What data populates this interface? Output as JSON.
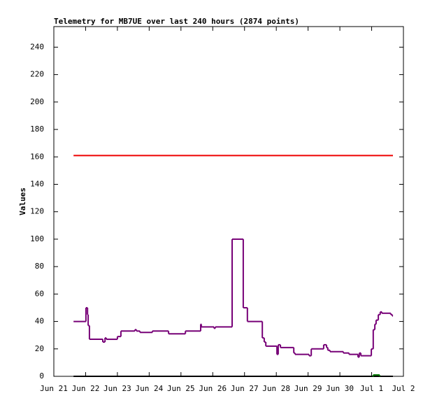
{
  "chart_data": {
    "type": "line",
    "step": true,
    "title": "Telemetry for MB7UE over last 240 hours (2874 points)",
    "ylabel": "Values",
    "xlim": [
      0,
      11
    ],
    "xticks": [
      {
        "value": 0,
        "label": "Jun 21"
      },
      {
        "value": 1,
        "label": "Jun 22"
      },
      {
        "value": 2,
        "label": "Jun 23"
      },
      {
        "value": 3,
        "label": "Jun 24"
      },
      {
        "value": 4,
        "label": "Jun 25"
      },
      {
        "value": 5,
        "label": "Jun 26"
      },
      {
        "value": 6,
        "label": "Jun 27"
      },
      {
        "value": 7,
        "label": "Jun 28"
      },
      {
        "value": 8,
        "label": "Jun 29"
      },
      {
        "value": 9,
        "label": "Jun 30"
      },
      {
        "value": 10,
        "label": "Jul 1"
      },
      {
        "value": 11,
        "label": "Jul 2"
      }
    ],
    "ylim": [
      0,
      255
    ],
    "yticks": [
      0,
      20,
      40,
      60,
      80,
      100,
      120,
      140,
      160,
      180,
      200,
      220,
      240
    ],
    "series": [
      {
        "color": "#000000",
        "x": [
          0.62,
          10.67
        ],
        "values": [
          0,
          0
        ]
      },
      {
        "color": "#007700",
        "x": [
          10.03,
          10.05,
          10.23,
          10.25
        ],
        "values": [
          0,
          1,
          1,
          0
        ]
      },
      {
        "color": "#ee0000",
        "x": [
          0.62,
          10.67
        ],
        "values": [
          161,
          161
        ]
      },
      {
        "color": "#770077",
        "x": [
          0.62,
          1.01,
          1.06,
          1.08,
          1.12,
          1.54,
          1.61,
          1.65,
          2.0,
          2.11,
          2.55,
          2.6,
          2.71,
          3.1,
          3.61,
          4.14,
          4.62,
          4.64,
          5.04,
          5.08,
          5.61,
          5.96,
          6.09,
          6.56,
          6.62,
          6.67,
          7.02,
          7.06,
          7.13,
          7.55,
          7.59,
          8.03,
          8.1,
          8.49,
          8.58,
          8.62,
          8.69,
          9.11,
          9.29,
          9.57,
          9.61,
          9.66,
          9.99,
          10.05,
          10.1,
          10.14,
          10.21,
          10.27,
          10.32,
          10.6,
          10.65,
          10.67
        ],
        "values": [
          40,
          50,
          45,
          37,
          27,
          25,
          28,
          27,
          29,
          33,
          34,
          33,
          32,
          33,
          31,
          33,
          38,
          36,
          35,
          36,
          100,
          50,
          40,
          28,
          25,
          22,
          16,
          23,
          21,
          17,
          16,
          15,
          20,
          23,
          21,
          19,
          18,
          17,
          16,
          14,
          17,
          15,
          20,
          34,
          38,
          41,
          45,
          47,
          46,
          45,
          44,
          44
        ]
      }
    ]
  }
}
